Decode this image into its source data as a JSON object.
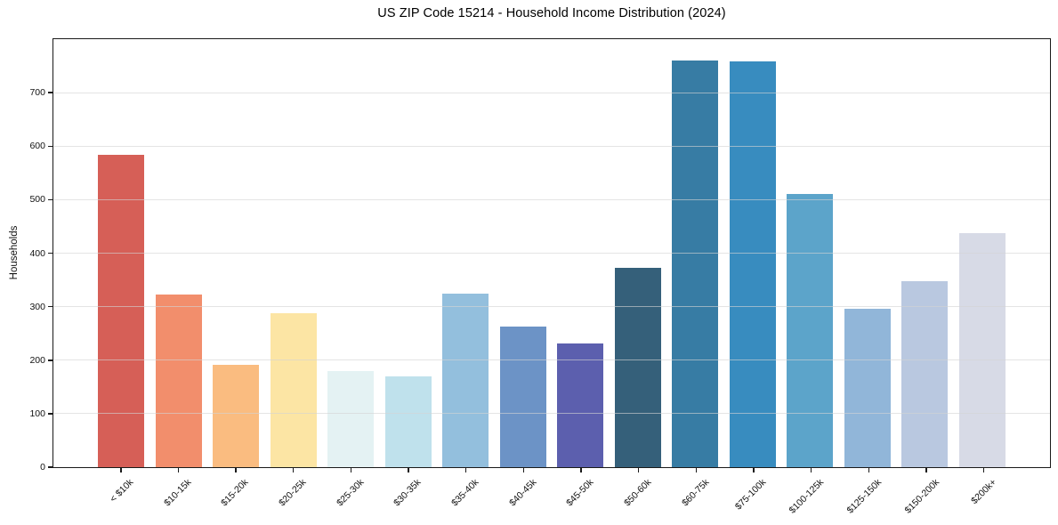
{
  "header": {
    "title": "US ZIP Code 15214 - Household Income Distribution (2024)"
  },
  "chart_data": {
    "type": "bar",
    "title": "US ZIP Code 15214 - Household Income Distribution (2024)",
    "xlabel": "",
    "ylabel": "Households",
    "categories": [
      "< $10k",
      "$10-15k",
      "$15-20k",
      "$20-25k",
      "$25-30k",
      "$30-35k",
      "$35-40k",
      "$40-45k",
      "$45-50k",
      "$50-60k",
      "$60-75k",
      "$75-100k",
      "$100-125k",
      "$125-150k",
      "$150-200k",
      "$200k+"
    ],
    "values": [
      584,
      322,
      192,
      288,
      180,
      169,
      324,
      263,
      232,
      372,
      760,
      758,
      510,
      296,
      347,
      437
    ],
    "bar_colors": [
      "#d65f57",
      "#f28e6c",
      "#fabc80",
      "#fce5a4",
      "#e4f2f3",
      "#bfe1ec",
      "#93bfdd",
      "#6c93c6",
      "#5c5fae",
      "#35607a",
      "#377ca4",
      "#388cbf",
      "#5ca4ca",
      "#91b6d9",
      "#b9c8e0",
      "#d7dae6"
    ],
    "ylim": [
      0,
      800
    ],
    "yticks": [
      0,
      100,
      200,
      300,
      400,
      500,
      600,
      700
    ],
    "grid": "horizontal",
    "grid_color": "#d4d4d4",
    "spine_color": "#1a1a1a",
    "background_color": "#ffffff",
    "legend_position": "none",
    "x_tick_rotation_deg": 45
  }
}
